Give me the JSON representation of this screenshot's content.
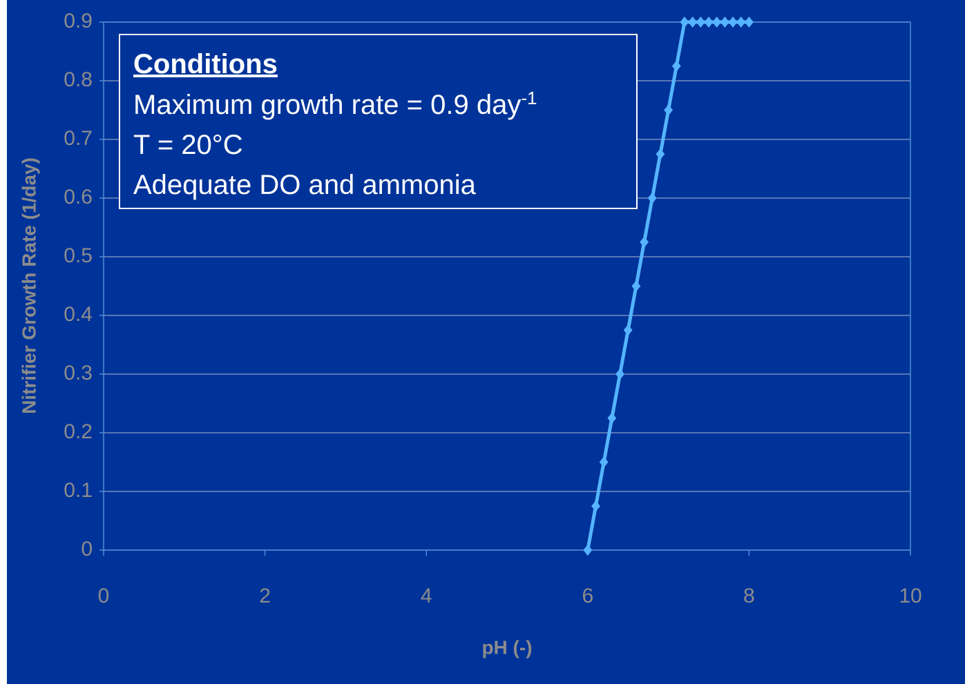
{
  "chart_data": {
    "type": "line",
    "x_label": "pH (-)",
    "y_label": "Nitrifier Growth Rate (1/day)",
    "annotation": {
      "title": "Conditions",
      "line1": "Maximum growth rate = 0.9 day",
      "line1_superscript": "-1",
      "line2": "T = 20°C",
      "line3": "Adequate DO and ammonia"
    },
    "x": [
      6.0,
      6.1,
      6.2,
      6.3,
      6.4,
      6.5,
      6.6,
      6.7,
      6.8,
      6.9,
      7.0,
      7.1,
      7.2,
      7.3,
      7.4,
      7.5,
      7.6,
      7.7,
      7.8,
      7.9,
      8.0
    ],
    "series": [
      {
        "color": "#55b4ff",
        "values": [
          0,
          0.075,
          0.15,
          0.225,
          0.3,
          0.375,
          0.45,
          0.525,
          0.6,
          0.675,
          0.75,
          0.825,
          0.9,
          0.9,
          0.9,
          0.9,
          0.9,
          0.9,
          0.9,
          0.9,
          0.9
        ]
      }
    ],
    "xlim": [
      0,
      10
    ],
    "xticks": [
      0,
      2,
      4,
      6,
      8,
      10
    ],
    "ylim": [
      0,
      0.9
    ],
    "yticks": [
      0,
      0.1,
      0.2,
      0.3,
      0.4,
      0.5,
      0.6,
      0.7,
      0.8,
      0.9
    ],
    "grid": true
  }
}
